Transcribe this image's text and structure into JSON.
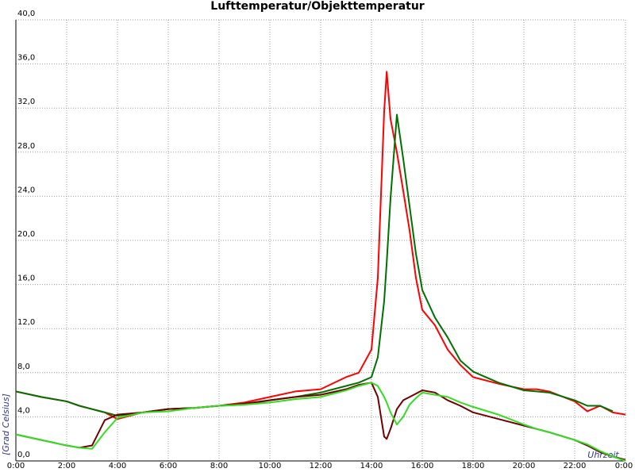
{
  "chart_data": {
    "type": "line",
    "title": "Lufttemperatur/Objekttemperatur",
    "y_label": "[Grad Celsius]",
    "x_label": "Uhrzeit",
    "x": [
      0,
      1,
      2,
      2.5,
      3,
      3.5,
      4,
      5,
      6,
      7,
      8,
      9,
      10,
      11,
      12,
      13,
      13.5,
      14,
      14.25,
      14.5,
      14.6,
      14.75,
      15,
      15.25,
      15.5,
      15.75,
      16,
      16.5,
      17,
      17.5,
      18,
      19,
      20,
      20.5,
      21,
      22,
      22.5,
      23,
      23.5,
      24
    ],
    "series": [
      {
        "color": "#ff0000",
        "values": [
          6.3,
          5.8,
          5.4,
          5.0,
          4.7,
          4.4,
          3.8,
          4.4,
          4.7,
          4.8,
          5.0,
          5.3,
          5.8,
          6.3,
          6.5,
          7.6,
          8.0,
          10.1,
          16.6,
          31.7,
          35.3,
          31.0,
          28.0,
          24.5,
          20.9,
          16.6,
          13.7,
          12.3,
          10.1,
          8.7,
          7.6,
          7.0,
          6.5,
          6.5,
          6.3,
          5.4,
          4.5,
          5.0,
          4.4,
          4.2
        ]
      },
      {
        "color": "#007000",
        "values": [
          6.3,
          5.8,
          5.4,
          5.0,
          4.7,
          4.4,
          4.1,
          4.4,
          4.7,
          4.8,
          5.0,
          5.1,
          5.5,
          5.8,
          6.2,
          6.8,
          7.1,
          7.6,
          9.4,
          14.5,
          18.0,
          23.8,
          31.4,
          27.4,
          23.1,
          18.8,
          15.5,
          13.0,
          11.2,
          9.1,
          8.1,
          7.1,
          6.4,
          6.3,
          6.2,
          5.5,
          5.0,
          5.0,
          4.5,
          null
        ]
      },
      {
        "color": "#700000",
        "values": [
          2.4,
          1.9,
          1.4,
          1.2,
          1.4,
          3.7,
          4.2,
          4.4,
          4.7,
          4.8,
          5.0,
          5.2,
          5.5,
          5.8,
          6.0,
          6.5,
          6.9,
          7.1,
          5.8,
          2.2,
          2.0,
          2.9,
          4.7,
          5.5,
          5.8,
          6.1,
          6.4,
          6.2,
          5.5,
          5.0,
          4.4,
          3.8,
          3.2,
          2.9,
          2.6,
          1.9,
          1.4,
          0.8,
          0.4,
          0.1
        ]
      },
      {
        "color": "#33dd22",
        "values": [
          2.4,
          1.9,
          1.4,
          1.2,
          1.1,
          2.6,
          3.9,
          4.4,
          4.5,
          4.8,
          5.0,
          5.1,
          5.3,
          5.6,
          5.8,
          6.4,
          6.8,
          7.1,
          6.8,
          5.8,
          5.3,
          4.4,
          3.3,
          4.0,
          5.1,
          5.7,
          6.2,
          6.0,
          5.8,
          5.3,
          4.9,
          4.2,
          3.3,
          2.9,
          2.6,
          1.9,
          1.5,
          0.9,
          0.4,
          0.0
        ]
      }
    ],
    "xlim": [
      0,
      24
    ],
    "xticks": [
      {
        "value": 0,
        "label": "0:00"
      },
      {
        "value": 2,
        "label": "2:00"
      },
      {
        "value": 4,
        "label": "4:00"
      },
      {
        "value": 6,
        "label": "6:00"
      },
      {
        "value": 8,
        "label": "8:00"
      },
      {
        "value": 10,
        "label": "10:00"
      },
      {
        "value": 12,
        "label": "12:00"
      },
      {
        "value": 14,
        "label": "14:00"
      },
      {
        "value": 16,
        "label": "16:00"
      },
      {
        "value": 18,
        "label": "18:00"
      },
      {
        "value": 20,
        "label": "20:00"
      },
      {
        "value": 22,
        "label": "22:00"
      },
      {
        "value": 24,
        "label": "0:00"
      }
    ],
    "ylim": [
      0,
      40
    ],
    "yticks": [
      {
        "value": 0,
        "label": "0,0"
      },
      {
        "value": 4,
        "label": "4,0"
      },
      {
        "value": 8,
        "label": "8,0"
      },
      {
        "value": 12,
        "label": "12,0"
      },
      {
        "value": 16,
        "label": "16,0"
      },
      {
        "value": 20,
        "label": "20,0"
      },
      {
        "value": 24,
        "label": "24,0"
      },
      {
        "value": 28,
        "label": "28,0"
      },
      {
        "value": 32,
        "label": "32,0"
      },
      {
        "value": 36,
        "label": "36,0"
      },
      {
        "value": 40,
        "label": "40,0"
      }
    ],
    "grid": true
  }
}
